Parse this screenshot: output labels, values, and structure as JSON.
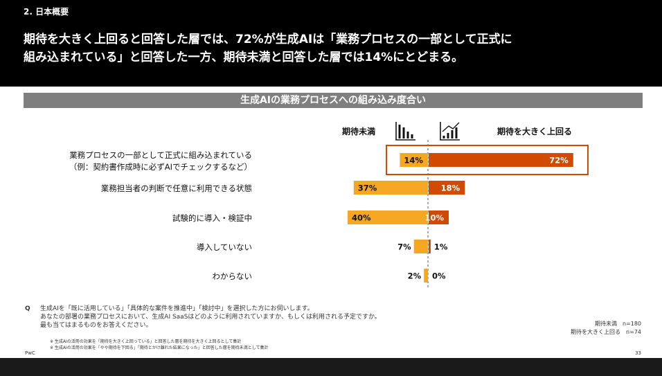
{
  "slide": {
    "section": "2. 日本概要",
    "headline_line1": "期待を大きく上回ると回答した層では、72%が生成AIは「業務プロセスの一部として正式に",
    "headline_line2": "組み込まれている」と回答した一方、期待未満と回答した層では14%にとどまる。",
    "panel_title": "生成AIの業務プロセスへの組み込み度合い",
    "question_mark": "Q",
    "question_lines": [
      "生成AIを「既に活用している」「具体的な案件を推進中」「検討中」を選択した方にお伺いします。",
      "あなたの部署の業務プロセスにおいて、生成AI SaaSはどのように利用されていますか、もしくは利用される予定ですか。",
      "最も当てはまるものをお答えください。"
    ],
    "notes": [
      "※ 生成AIの活用の効果を「期待を大きく上回っている」と回答した層を期待を大きく上回るとして集計",
      "※ 生成AIの活用の効果を「やや期待を下回る」「期待とかけ離れた結果になった」と回答した層を期待未満として集計"
    ],
    "counts": [
      "期待未満　n=180",
      "期待を大きく上回る　n=74"
    ],
    "footer_left": "PwC",
    "page_number": "33"
  },
  "chart_data": {
    "type": "bar",
    "orientation": "horizontal-diverging",
    "categories": [
      "業務プロセスの一部として正式に組み込まれている\n（例：契約書作成時に必ずAIでチェックするなど）",
      "業務担当者の判断で任意に利用できる状態",
      "試験的に導入・検証中",
      "導入していない",
      "わからない"
    ],
    "series": [
      {
        "name": "期待未満",
        "values": [
          14,
          37,
          40,
          7,
          2
        ],
        "color": "#f5a623",
        "side": "left"
      },
      {
        "name": "期待を大きく上回る",
        "values": [
          72,
          18,
          10,
          1,
          0
        ],
        "color": "#d04a02",
        "side": "right"
      }
    ],
    "value_suffix": "%",
    "highlight_category_index": 0,
    "highlight_color": "#d04a02",
    "icons": {
      "left": "declining-bar-chart-icon",
      "right": "rising-bar-chart-icon"
    }
  }
}
